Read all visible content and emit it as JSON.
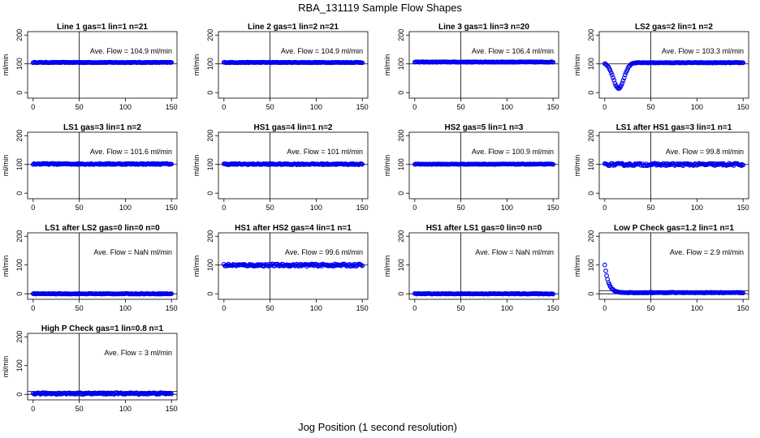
{
  "title": "RBA_131119  Sample Flow Shapes",
  "xlabel": "Jog Position (1 second resolution)",
  "colors": {
    "points": "#0000ee",
    "axes": "#000000"
  },
  "chart_data": [
    {
      "type": "scatter",
      "title": "Line 1 gas=1 lin=1 n=21",
      "ylabel": "ml/min",
      "annotation": "Ave. Flow = 104.9  ml/min",
      "xlim": [
        0,
        150
      ],
      "ylim": [
        0,
        200
      ],
      "yticks": [
        0,
        100,
        200
      ],
      "xticks": [
        0,
        50,
        100,
        150
      ],
      "vline": 50,
      "hlines": [
        100
      ],
      "shape": {
        "kind": "flat",
        "level": 104.9,
        "noise": 1
      }
    },
    {
      "type": "scatter",
      "title": "Line 2 gas=1 lin=2 n=21",
      "ylabel": "ml/min",
      "annotation": "Ave. Flow = 104.9  ml/min",
      "xlim": [
        0,
        150
      ],
      "ylim": [
        0,
        200
      ],
      "yticks": [
        0,
        100,
        200
      ],
      "xticks": [
        0,
        50,
        100,
        150
      ],
      "vline": 50,
      "hlines": [
        100
      ],
      "shape": {
        "kind": "flat",
        "level": 104.9,
        "noise": 1
      }
    },
    {
      "type": "scatter",
      "title": "Line 3 gas=1 lin=3 n=20",
      "ylabel": "ml/min",
      "annotation": "Ave. Flow = 106.4  ml/min",
      "xlim": [
        0,
        150
      ],
      "ylim": [
        0,
        200
      ],
      "yticks": [
        0,
        100,
        200
      ],
      "xticks": [
        0,
        50,
        100,
        150
      ],
      "vline": 50,
      "hlines": [
        100
      ],
      "shape": {
        "kind": "flat",
        "level": 106.4,
        "noise": 1
      }
    },
    {
      "type": "scatter",
      "title": "LS2 gas=2 lin=1 n=2",
      "ylabel": "ml/min",
      "annotation": "Ave. Flow = 103.3  ml/min",
      "xlim": [
        0,
        150
      ],
      "ylim": [
        0,
        200
      ],
      "yticks": [
        0,
        100,
        200
      ],
      "xticks": [
        0,
        50,
        100,
        150
      ],
      "vline": 50,
      "hlines": [
        100
      ],
      "shape": {
        "kind": "dip",
        "level": 104,
        "dip_min": 15,
        "dip_center": 15,
        "dip_width": 9,
        "noise": 1
      }
    },
    {
      "type": "scatter",
      "title": "LS1 gas=3 lin=1 n=2",
      "ylabel": "ml/min",
      "annotation": "Ave. Flow = 101.6  ml/min",
      "xlim": [
        0,
        150
      ],
      "ylim": [
        0,
        200
      ],
      "yticks": [
        0,
        100,
        200
      ],
      "xticks": [
        0,
        50,
        100,
        150
      ],
      "vline": 50,
      "hlines": [
        100
      ],
      "shape": {
        "kind": "flat",
        "level": 101.6,
        "noise": 2
      }
    },
    {
      "type": "scatter",
      "title": "HS1 gas=4 lin=1 n=2",
      "ylabel": "ml/min",
      "annotation": "Ave. Flow = 101  ml/min",
      "xlim": [
        0,
        150
      ],
      "ylim": [
        0,
        200
      ],
      "yticks": [
        0,
        100,
        200
      ],
      "xticks": [
        0,
        50,
        100,
        150
      ],
      "vline": 50,
      "hlines": [
        100
      ],
      "shape": {
        "kind": "flat",
        "level": 101,
        "noise": 2
      }
    },
    {
      "type": "scatter",
      "title": "HS2 gas=5 lin=1 n=3",
      "ylabel": "ml/min",
      "annotation": "Ave. Flow = 100.9  ml/min",
      "xlim": [
        0,
        150
      ],
      "ylim": [
        0,
        200
      ],
      "yticks": [
        0,
        100,
        200
      ],
      "xticks": [
        0,
        50,
        100,
        150
      ],
      "vline": 50,
      "hlines": [
        100
      ],
      "shape": {
        "kind": "flat",
        "level": 100.9,
        "noise": 1
      }
    },
    {
      "type": "scatter",
      "title": "LS1 after HS1 gas=3 lin=1 n=1",
      "ylabel": "ml/min",
      "annotation": "Ave. Flow = 99.8  ml/min",
      "xlim": [
        0,
        150
      ],
      "ylim": [
        0,
        200
      ],
      "yticks": [
        0,
        100,
        200
      ],
      "xticks": [
        0,
        50,
        100,
        150
      ],
      "vline": 50,
      "hlines": [
        100
      ],
      "shape": {
        "kind": "flat",
        "level": 99.8,
        "noise": 4
      }
    },
    {
      "type": "scatter",
      "title": "LS1 after LS2 gas=0 lin=0 n=0",
      "ylabel": "ml/min",
      "annotation": "Ave. Flow =  NaN  ml/min",
      "xlim": [
        0,
        150
      ],
      "ylim": [
        0,
        200
      ],
      "yticks": [
        0,
        100,
        200
      ],
      "xticks": [
        0,
        50,
        100,
        150
      ],
      "vline": 50,
      "hlines": [
        0
      ],
      "shape": {
        "kind": "flat",
        "level": 0,
        "noise": 1
      }
    },
    {
      "type": "scatter",
      "title": "HS1 after HS2 gas=4 lin=1 n=1",
      "ylabel": "ml/min",
      "annotation": "Ave. Flow = 99.6  ml/min",
      "xlim": [
        0,
        150
      ],
      "ylim": [
        0,
        200
      ],
      "yticks": [
        0,
        100,
        200
      ],
      "xticks": [
        0,
        50,
        100,
        150
      ],
      "vline": 50,
      "hlines": [
        100
      ],
      "shape": {
        "kind": "flat",
        "level": 99.6,
        "noise": 4
      }
    },
    {
      "type": "scatter",
      "title": "HS1 after LS1 gas=0 lin=0 n=0",
      "ylabel": "ml/min",
      "annotation": "Ave. Flow =  NaN  ml/min",
      "xlim": [
        0,
        150
      ],
      "ylim": [
        0,
        200
      ],
      "yticks": [
        0,
        100,
        200
      ],
      "xticks": [
        0,
        50,
        100,
        150
      ],
      "vline": 50,
      "hlines": [
        0
      ],
      "shape": {
        "kind": "flat",
        "level": 0,
        "noise": 1
      }
    },
    {
      "type": "scatter",
      "title": "Low P Check gas=1.2 lin=1 n=1",
      "ylabel": "ml/min",
      "annotation": "Ave. Flow = 2.9  ml/min",
      "xlim": [
        0,
        150
      ],
      "ylim": [
        0,
        200
      ],
      "yticks": [
        0,
        100,
        200
      ],
      "xticks": [
        0,
        50,
        100,
        150
      ],
      "vline": 50,
      "hlines": [
        0,
        10
      ],
      "shape": {
        "kind": "decay",
        "start": 100,
        "level": 3,
        "tau": 4,
        "noise": 2
      }
    },
    {
      "type": "scatter",
      "title": "High P Check gas=1 lin=0.8 n=1",
      "ylabel": "ml/min",
      "annotation": "Ave. Flow =  3  ml/min",
      "xlim": [
        0,
        150
      ],
      "ylim": [
        0,
        200
      ],
      "yticks": [
        0,
        100,
        200
      ],
      "xticks": [
        0,
        50,
        100,
        150
      ],
      "vline": 50,
      "hlines": [
        0,
        10
      ],
      "shape": {
        "kind": "flat",
        "level": 3,
        "noise": 3
      }
    }
  ]
}
